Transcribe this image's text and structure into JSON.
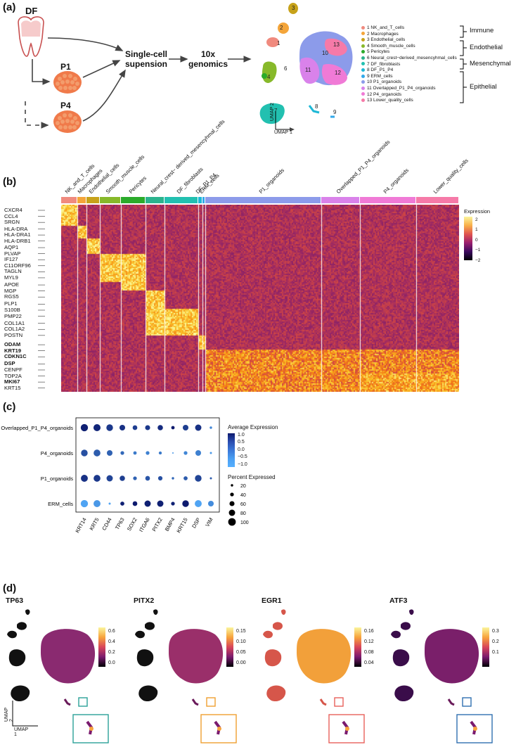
{
  "panel_a": {
    "label": "(a)",
    "source_df": "DF",
    "source_p1": "P1",
    "source_p4": "P4",
    "step1": [
      "Single-cell",
      "supension"
    ],
    "step2": [
      "10x",
      "genomics"
    ],
    "umap_x": "UMAP 1",
    "umap_y": "UMAP 2",
    "clusters": [
      {
        "label": "1 NK_and_T_cells",
        "color": "#f08a7e"
      },
      {
        "label": "2 Macrophages",
        "color": "#f4a53a"
      },
      {
        "label": "3 Endothelial_cells",
        "color": "#c7a21a"
      },
      {
        "label": "4 Smooth_muscle_cells",
        "color": "#87b92a"
      },
      {
        "label": "5 Pericytes",
        "color": "#2bab2b"
      },
      {
        "label": "6 Neural_crest−derived_mesencyhmal_cells",
        "color": "#2bb38d"
      },
      {
        "label": "7 DF_fibroblasts",
        "color": "#22c0b0"
      },
      {
        "label": "8 DF_P1_P4",
        "color": "#1eb8d6"
      },
      {
        "label": "9 ERM_cells",
        "color": "#32a9ea"
      },
      {
        "label": "10 P1_organoids",
        "color": "#8c9bea"
      },
      {
        "label": "11 Overlapped_P1_P4_organoids",
        "color": "#d982ea"
      },
      {
        "label": "12 P4_organoids",
        "color": "#f07ad6"
      },
      {
        "label": "13 Lower_quality_cells",
        "color": "#f67aa8"
      }
    ],
    "cluster_numbers": [
      "1",
      "2",
      "3",
      "4",
      "6",
      "7",
      "8",
      "9",
      "10",
      "11",
      "12",
      "13"
    ],
    "categories": [
      "Immune",
      "Endothelial",
      "Mesenchymal",
      "Epithelial"
    ]
  },
  "panel_b": {
    "label": "(b)",
    "columns": [
      "NK_and_T_cells",
      "Macrophages",
      "Endothelial_cells",
      "Smooth_muscle_cells",
      "Pericytes",
      "Neural_crest− derived_mesencyhmal_cells",
      "DF_fibroblasts",
      "DF_P1_P4",
      "ERM_cells",
      "P1_organoids",
      "Overlapped_P1_P4_organoids",
      "P4_organoids",
      "Lower_quality_cells"
    ],
    "genes": [
      {
        "name": "CXCR4",
        "bold": false
      },
      {
        "name": "CCL4",
        "bold": false
      },
      {
        "name": "SRGN",
        "bold": false
      },
      {
        "name": "HLA-DRA",
        "bold": false
      },
      {
        "name": "HLA-DRA1",
        "bold": false
      },
      {
        "name": "HLA-DRB1",
        "bold": false
      },
      {
        "name": "AQP1",
        "bold": false
      },
      {
        "name": "PLVAP",
        "bold": false
      },
      {
        "name": "IF127",
        "bold": false
      },
      {
        "name": "C11ORF96",
        "bold": false
      },
      {
        "name": "TAGLN",
        "bold": false
      },
      {
        "name": "MYL9",
        "bold": false
      },
      {
        "name": "APOE",
        "bold": false
      },
      {
        "name": "MGP",
        "bold": false
      },
      {
        "name": "RGS5",
        "bold": false
      },
      {
        "name": "PLP1",
        "bold": false
      },
      {
        "name": "S100B",
        "bold": false
      },
      {
        "name": "PMP22",
        "bold": false
      },
      {
        "name": "COL1A1",
        "bold": false
      },
      {
        "name": "COL1A2",
        "bold": false
      },
      {
        "name": "POSTN",
        "bold": false
      },
      {
        "name": "ODAM",
        "bold": true
      },
      {
        "name": "KRT19",
        "bold": true
      },
      {
        "name": "CDKN1C",
        "bold": true
      },
      {
        "name": "DSP",
        "bold": true
      },
      {
        "name": "CENPF",
        "bold": false
      },
      {
        "name": "TOP2A",
        "bold": false
      },
      {
        "name": "MKI67",
        "bold": true
      },
      {
        "name": "KRT15",
        "bold": false
      }
    ],
    "legend_title": "Expression",
    "legend_ticks": [
      "2",
      "1",
      "0",
      "−1",
      "−2"
    ]
  },
  "panel_c": {
    "label": "(c)",
    "rows": [
      "Overlapped_P1_P4_organoids",
      "P4_organoids",
      "P1_organoids",
      "ERM_cells"
    ],
    "cols": [
      "KRT14",
      "KRT5",
      "CD44",
      "TP63",
      "SOX2",
      "ITGA6",
      "PITX2",
      "BMP4",
      "KRT15",
      "DSP",
      "VIM"
    ],
    "avg_title": "Average Expression",
    "avg_ticks": [
      "1.0",
      "0.5",
      "0.0",
      "−0.5",
      "−1.0"
    ],
    "pct_title": "Percent Expressed",
    "pct_ticks": [
      "20",
      "40",
      "60",
      "80",
      "100"
    ],
    "dots": [
      [
        [
          1.2,
          95
        ],
        [
          1.1,
          92
        ],
        [
          0.8,
          85
        ],
        [
          0.9,
          70
        ],
        [
          0.7,
          55
        ],
        [
          0.8,
          60
        ],
        [
          1.0,
          65
        ],
        [
          1.3,
          35
        ],
        [
          0.7,
          70
        ],
        [
          0.9,
          80
        ],
        [
          -0.5,
          20
        ]
      ],
      [
        [
          0.4,
          85
        ],
        [
          0.2,
          88
        ],
        [
          0.1,
          70
        ],
        [
          0.0,
          40
        ],
        [
          -0.3,
          35
        ],
        [
          -0.4,
          40
        ],
        [
          -0.3,
          30
        ],
        [
          -0.8,
          5
        ],
        [
          -0.5,
          40
        ],
        [
          -0.4,
          70
        ],
        [
          -0.8,
          15
        ]
      ],
      [
        [
          0.9,
          90
        ],
        [
          0.8,
          88
        ],
        [
          0.6,
          80
        ],
        [
          0.7,
          65
        ],
        [
          0.1,
          40
        ],
        [
          0.3,
          55
        ],
        [
          0.4,
          50
        ],
        [
          0.0,
          20
        ],
        [
          0.2,
          45
        ],
        [
          0.6,
          85
        ],
        [
          0.2,
          15
        ]
      ],
      [
        [
          -1.0,
          95
        ],
        [
          -0.8,
          90
        ],
        [
          -1.0,
          15
        ],
        [
          1.2,
          45
        ],
        [
          1.3,
          55
        ],
        [
          1.2,
          80
        ],
        [
          1.2,
          80
        ],
        [
          1.2,
          40
        ],
        [
          1.3,
          85
        ],
        [
          -1.0,
          90
        ],
        [
          -0.6,
          70
        ]
      ]
    ]
  },
  "panel_d": {
    "label": "(d)",
    "umap_x": "UMAP 1",
    "umap_y": "UMAP 2",
    "plots": [
      {
        "title": "TP63",
        "ticks": [
          "0.6",
          "0.4",
          "0.2",
          "0.0"
        ],
        "box_color": "#2aa198"
      },
      {
        "title": "PITX2",
        "ticks": [
          "0.15",
          "0.10",
          "0.05",
          "0.00"
        ],
        "box_color": "#f0a030"
      },
      {
        "title": "EGR1",
        "ticks": [
          "0.16",
          "0.12",
          "0.08",
          "0.04"
        ],
        "box_color": "#e8605a"
      },
      {
        "title": "ATF3",
        "ticks": [
          "0.3",
          "0.2",
          "0.1"
        ],
        "box_color": "#3070b0"
      }
    ]
  }
}
